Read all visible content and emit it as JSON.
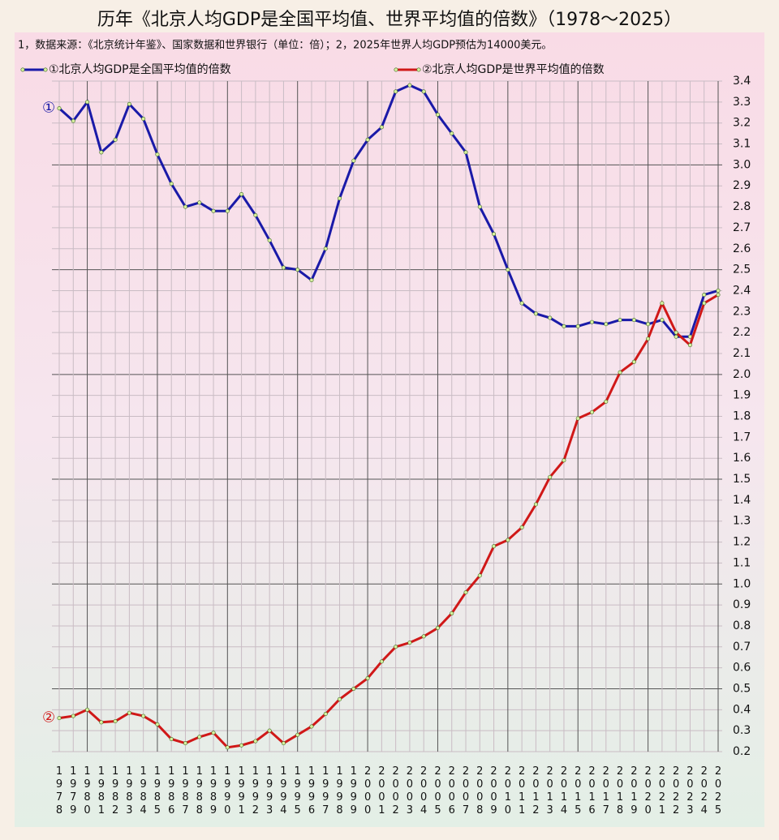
{
  "chart_data": {
    "type": "line",
    "title": "历年《北京人均GDP是全国平均值、世界平均值的倍数》（1978～2025）",
    "subtitle": "1，数据来源：《北京统计年鉴》、国家数据和世界银行（单位：倍）；2，2025年世界人均GDP预估为14000美元。",
    "categories": [
      "1978",
      "1979",
      "1980",
      "1981",
      "1982",
      "1983",
      "1984",
      "1985",
      "1986",
      "1987",
      "1988",
      "1989",
      "1990",
      "1991",
      "1992",
      "1993",
      "1994",
      "1995",
      "1996",
      "1997",
      "1998",
      "1999",
      "2000",
      "2001",
      "2002",
      "2003",
      "2004",
      "2005",
      "2006",
      "2007",
      "2008",
      "2009",
      "2010",
      "2011",
      "2012",
      "2013",
      "2014",
      "2015",
      "2016",
      "2017",
      "2018",
      "2019",
      "2020",
      "2021",
      "2022",
      "2023",
      "2024",
      "2025"
    ],
    "series": [
      {
        "name": "①北京人均GDP是全国平均值的倍数",
        "color": "#1a1aa8",
        "marker": "①",
        "values": [
          3.27,
          3.21,
          3.3,
          3.06,
          3.12,
          3.29,
          3.22,
          3.05,
          2.91,
          2.8,
          2.82,
          2.78,
          2.78,
          2.86,
          2.76,
          2.64,
          2.51,
          2.5,
          2.45,
          2.6,
          2.84,
          3.02,
          3.12,
          3.18,
          3.35,
          3.38,
          3.35,
          3.24,
          3.15,
          3.06,
          2.8,
          2.67,
          2.5,
          2.34,
          2.29,
          2.27,
          2.23,
          2.23,
          2.25,
          2.24,
          2.26,
          2.26,
          2.24,
          2.26,
          2.18,
          2.18,
          2.38,
          2.4
        ]
      },
      {
        "name": "②北京人均GDP是世界平均值的倍数",
        "color": "#d01818",
        "marker": "②",
        "values": [
          0.36,
          0.37,
          0.4,
          0.34,
          0.345,
          0.385,
          0.37,
          0.33,
          0.26,
          0.24,
          0.27,
          0.29,
          0.22,
          0.23,
          0.25,
          0.3,
          0.24,
          0.28,
          0.32,
          0.38,
          0.45,
          0.5,
          0.55,
          0.63,
          0.7,
          0.72,
          0.75,
          0.79,
          0.86,
          0.96,
          1.04,
          1.18,
          1.21,
          1.27,
          1.38,
          1.51,
          1.59,
          1.79,
          1.82,
          1.87,
          2.01,
          2.06,
          2.17,
          2.34,
          2.2,
          2.14,
          2.34,
          2.38
        ]
      }
    ],
    "ylim": [
      0.2,
      3.4
    ],
    "yticks": [
      0.2,
      0.3,
      0.4,
      0.5,
      0.6,
      0.7,
      0.8,
      0.9,
      {
        "value": 1,
        "label": "1.0"
      },
      1.1,
      1.2,
      1.3,
      1.4,
      1.5,
      1.6,
      1.7,
      1.8,
      1.9,
      {
        "value": 2,
        "label": "2.0"
      },
      2.1,
      2.2,
      2.3,
      2.4,
      2.5,
      2.6,
      2.7,
      2.8,
      2.9,
      {
        "value": 3,
        "label": "3.0"
      },
      3.1,
      3.2,
      3.3,
      3.4
    ],
    "grid": true
  }
}
